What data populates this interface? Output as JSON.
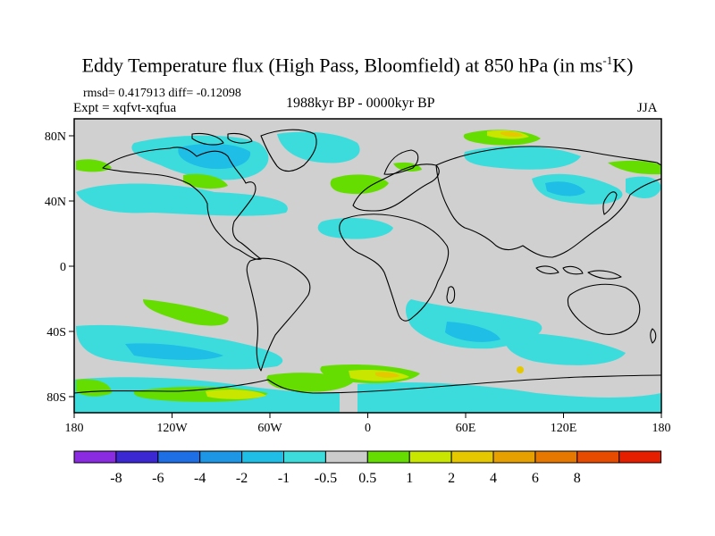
{
  "title": {
    "main": "Eddy Temperature flux (High Pass, Bloomfield) at 850 hPa (in ms",
    "sup": "-1",
    "tail": "K)"
  },
  "stats": {
    "rmsd_label": "rmsd=",
    "rmsd_value": "0.417913",
    "diff_label": "diff=",
    "diff_value": "-0.12098"
  },
  "experiment": "Expt = xqfvt-xqfua",
  "period": "1988kyr BP - 0000kyr BP",
  "season": "JJA",
  "axes": {
    "lat_labels": [
      "80N",
      "40N",
      "0",
      "40S",
      "80S"
    ],
    "lon_labels": [
      "180",
      "120W",
      "60W",
      "0",
      "60E",
      "120E",
      "180"
    ]
  },
  "colorbar": {
    "colors": [
      "#8a2be2",
      "#3c28d2",
      "#1e6ee6",
      "#1e96e6",
      "#1ebee6",
      "#3cdcdc",
      "#cccccc",
      "#66dd00",
      "#c8e600",
      "#e6c800",
      "#e6a000",
      "#e67800",
      "#e64b00",
      "#e61e00"
    ],
    "labels": [
      "-8",
      "-6",
      "-4",
      "-2",
      "-1",
      "-0.5",
      "0.5",
      "1",
      "2",
      "4",
      "6",
      "8"
    ]
  },
  "palette": {
    "ocean_bg": "#d0d0d0",
    "coast": "#000000"
  }
}
